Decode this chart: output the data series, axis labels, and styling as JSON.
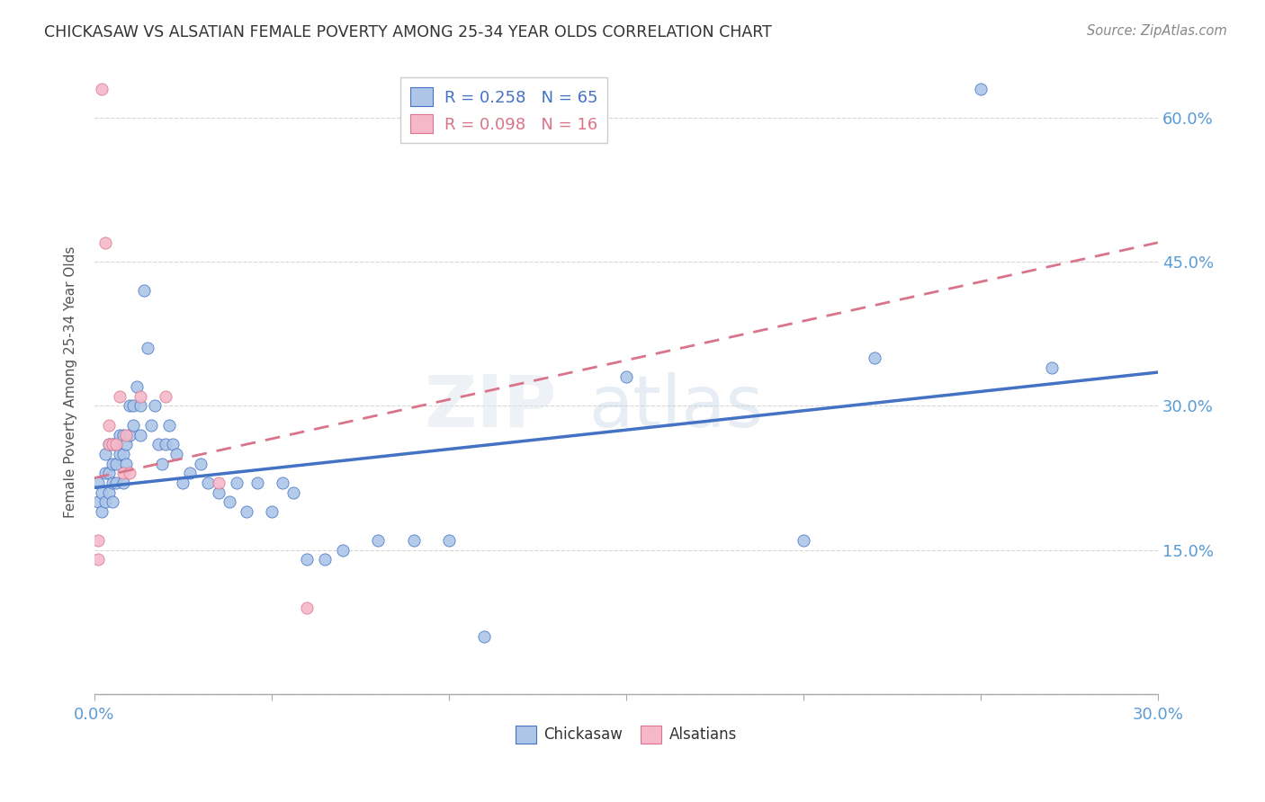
{
  "title": "CHICKASAW VS ALSATIAN FEMALE POVERTY AMONG 25-34 YEAR OLDS CORRELATION CHART",
  "source": "Source: ZipAtlas.com",
  "xlabel": "",
  "ylabel": "Female Poverty Among 25-34 Year Olds",
  "xlim": [
    0.0,
    0.3
  ],
  "ylim": [
    0.0,
    0.65
  ],
  "xticks": [
    0.0,
    0.05,
    0.1,
    0.15,
    0.2,
    0.25,
    0.3
  ],
  "xticklabels": [
    "0.0%",
    "",
    "",
    "",
    "",
    "",
    "30.0%"
  ],
  "yticks": [
    0.0,
    0.15,
    0.3,
    0.45,
    0.6
  ],
  "yticklabels": [
    "",
    "15.0%",
    "30.0%",
    "45.0%",
    "60.0%"
  ],
  "chickasaw_color": "#adc6e8",
  "alsatian_color": "#f4b8ca",
  "chickasaw_line_color": "#4472c4",
  "alsatian_line_color": "#d9748a",
  "legend_chickasaw": "R = 0.258   N = 65",
  "legend_alsatian": "R = 0.098   N = 16",
  "legend_label1": "Chickasaw",
  "legend_label2": "Alsatians",
  "watermark": "ZIPatlas",
  "chickasaw_x": [
    0.001,
    0.001,
    0.002,
    0.002,
    0.003,
    0.003,
    0.003,
    0.004,
    0.004,
    0.004,
    0.005,
    0.005,
    0.005,
    0.005,
    0.006,
    0.006,
    0.006,
    0.007,
    0.007,
    0.008,
    0.008,
    0.008,
    0.009,
    0.009,
    0.01,
    0.01,
    0.011,
    0.011,
    0.012,
    0.013,
    0.013,
    0.014,
    0.015,
    0.016,
    0.017,
    0.018,
    0.019,
    0.02,
    0.021,
    0.022,
    0.023,
    0.025,
    0.027,
    0.03,
    0.032,
    0.035,
    0.038,
    0.04,
    0.043,
    0.046,
    0.05,
    0.053,
    0.056,
    0.06,
    0.065,
    0.07,
    0.08,
    0.09,
    0.1,
    0.11,
    0.15,
    0.2,
    0.22,
    0.25,
    0.27
  ],
  "chickasaw_y": [
    0.2,
    0.22,
    0.19,
    0.21,
    0.2,
    0.23,
    0.25,
    0.21,
    0.23,
    0.26,
    0.2,
    0.22,
    0.24,
    0.26,
    0.22,
    0.24,
    0.26,
    0.25,
    0.27,
    0.22,
    0.25,
    0.27,
    0.24,
    0.26,
    0.27,
    0.3,
    0.28,
    0.3,
    0.32,
    0.27,
    0.3,
    0.42,
    0.36,
    0.28,
    0.3,
    0.26,
    0.24,
    0.26,
    0.28,
    0.26,
    0.25,
    0.22,
    0.23,
    0.24,
    0.22,
    0.21,
    0.2,
    0.22,
    0.19,
    0.22,
    0.19,
    0.22,
    0.21,
    0.14,
    0.14,
    0.15,
    0.16,
    0.16,
    0.16,
    0.06,
    0.33,
    0.16,
    0.35,
    0.63,
    0.34
  ],
  "alsatian_x": [
    0.001,
    0.001,
    0.002,
    0.003,
    0.004,
    0.004,
    0.005,
    0.006,
    0.007,
    0.008,
    0.009,
    0.01,
    0.013,
    0.02,
    0.035,
    0.06
  ],
  "alsatian_y": [
    0.14,
    0.16,
    0.63,
    0.47,
    0.26,
    0.28,
    0.26,
    0.26,
    0.31,
    0.23,
    0.27,
    0.23,
    0.31,
    0.31,
    0.22,
    0.09
  ],
  "chickasaw_trendline_x": [
    0.0,
    0.3
  ],
  "chickasaw_trendline_y": [
    0.215,
    0.335
  ],
  "alsatian_trendline_x": [
    0.0,
    0.3
  ],
  "alsatian_trendline_y": [
    0.225,
    0.47
  ]
}
